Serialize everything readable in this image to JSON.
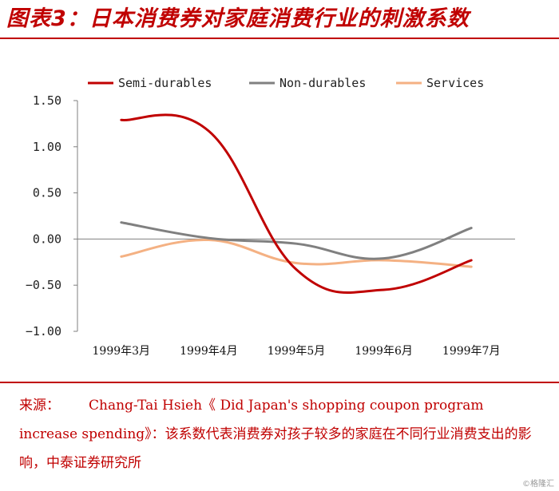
{
  "header": {
    "title": "图表3：日本消费券对家庭消费行业的刺激系数"
  },
  "chart_data": {
    "type": "line",
    "title": "图表3：日本消费券对家庭消费行业的刺激系数",
    "categories": [
      "1999年3月",
      "1999年4月",
      "1999年5月",
      "1999年6月",
      "1999年7月"
    ],
    "series": [
      {
        "name": "Semi-durables",
        "color": "#c00000",
        "values": [
          1.29,
          1.17,
          -0.33,
          -0.55,
          -0.23
        ]
      },
      {
        "name": "Non-durables",
        "color": "#808080",
        "values": [
          0.18,
          0.01,
          -0.05,
          -0.21,
          0.12
        ]
      },
      {
        "name": "Services",
        "color": "#f4b183",
        "values": [
          -0.19,
          -0.01,
          -0.26,
          -0.23,
          -0.3
        ]
      }
    ],
    "yticks": [
      "1.50",
      "1.00",
      "0.50",
      "0.00",
      "−0.50",
      "−1.00"
    ],
    "ylim": [
      -1.0,
      1.5
    ],
    "legend_position": "top",
    "grid": false
  },
  "note": {
    "label": "来源：",
    "text": "Chang-Tai Hsieh《 Did Japan's shopping coupon program increase spending》：该系数代表消费券对孩子较多的家庭在不同行业消费支出的影响，中泰证券研究所"
  },
  "watermark": "©格隆汇"
}
